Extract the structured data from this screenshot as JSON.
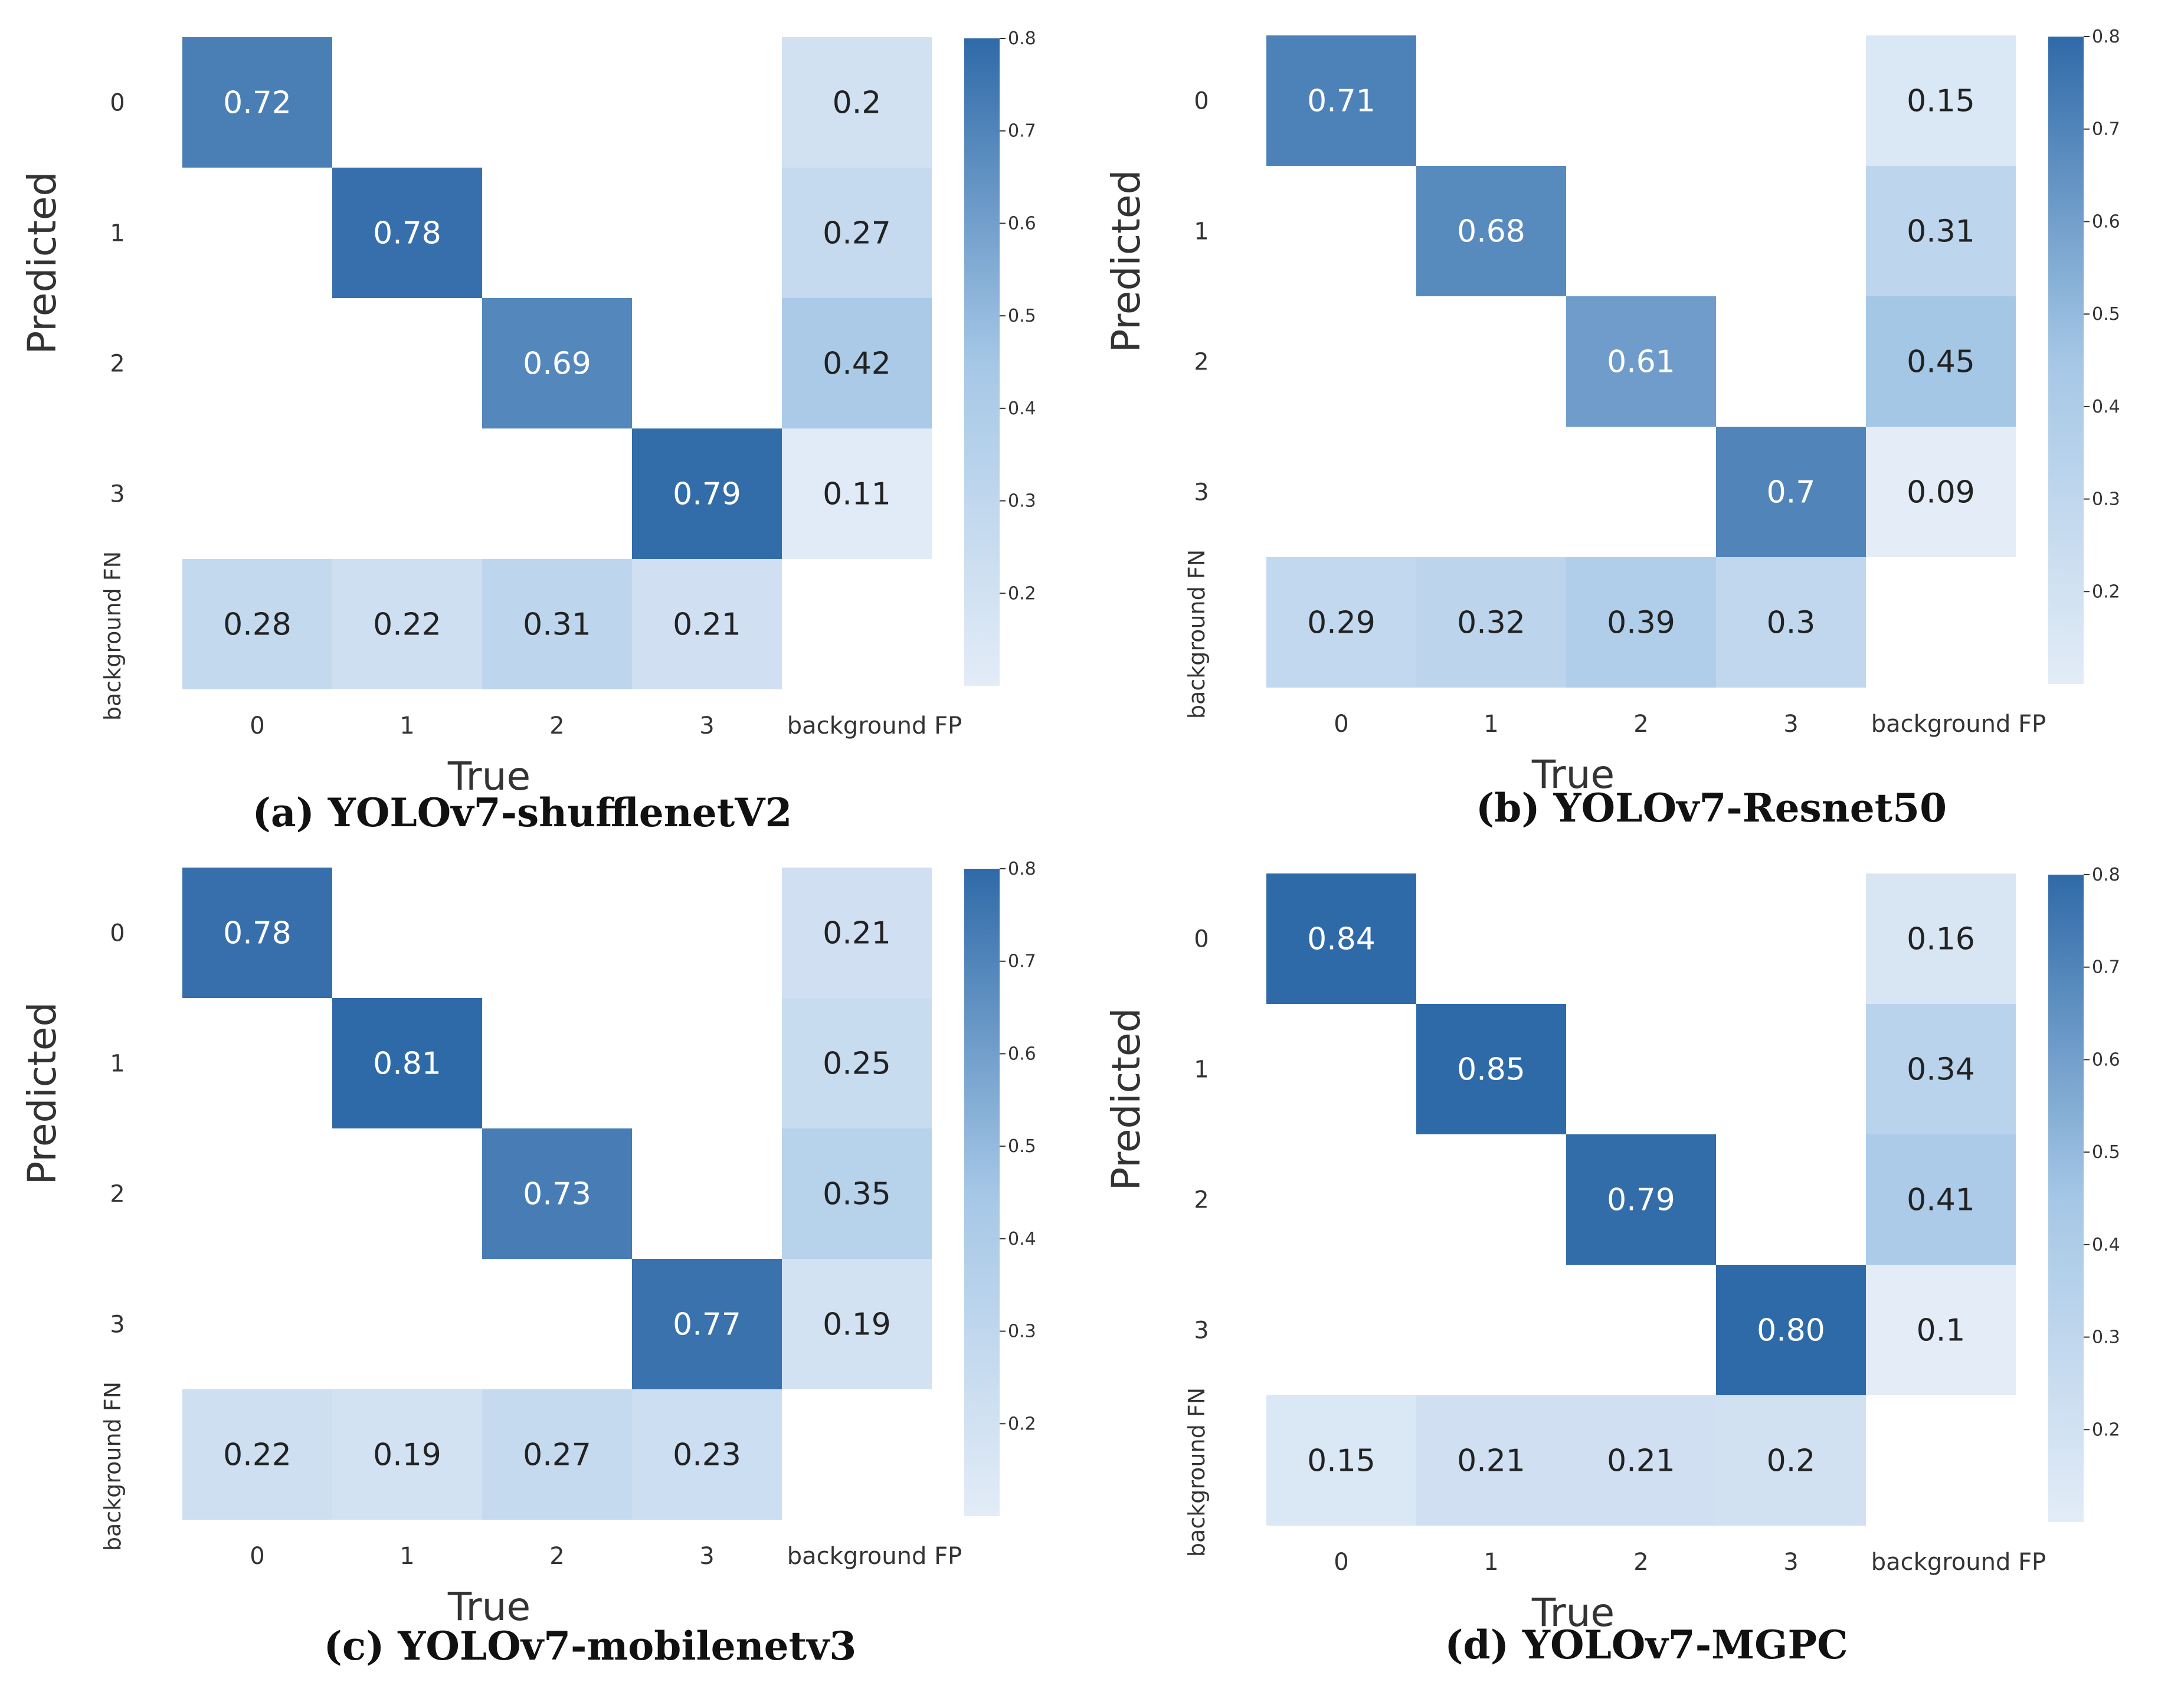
{
  "chart_data": [
    {
      "type": "heatmap",
      "caption": "(a) YOLOv7-shufflenetV2",
      "xlabel": "True",
      "ylabel": "Predicted",
      "x_categories": [
        "0",
        "1",
        "2",
        "3",
        "background FP"
      ],
      "y_categories": [
        "0",
        "1",
        "2",
        "3",
        "background FN"
      ],
      "colorbar": {
        "min": 0.1,
        "max": 0.8,
        "ticks": [
          "0.2",
          "0.3",
          "0.4",
          "0.5",
          "0.6",
          "0.7",
          "0.8"
        ]
      },
      "cells": [
        {
          "row": 0,
          "col": 0,
          "value": 0.72,
          "label": "0.72"
        },
        {
          "row": 0,
          "col": 4,
          "value": 0.2,
          "label": "0.2"
        },
        {
          "row": 1,
          "col": 1,
          "value": 0.78,
          "label": "0.78"
        },
        {
          "row": 1,
          "col": 4,
          "value": 0.27,
          "label": "0.27"
        },
        {
          "row": 2,
          "col": 2,
          "value": 0.69,
          "label": "0.69"
        },
        {
          "row": 2,
          "col": 4,
          "value": 0.42,
          "label": "0.42"
        },
        {
          "row": 3,
          "col": 3,
          "value": 0.79,
          "label": "0.79"
        },
        {
          "row": 3,
          "col": 4,
          "value": 0.11,
          "label": "0.11"
        },
        {
          "row": 4,
          "col": 0,
          "value": 0.28,
          "label": "0.28"
        },
        {
          "row": 4,
          "col": 1,
          "value": 0.22,
          "label": "0.22"
        },
        {
          "row": 4,
          "col": 2,
          "value": 0.31,
          "label": "0.31"
        },
        {
          "row": 4,
          "col": 3,
          "value": 0.21,
          "label": "0.21"
        }
      ]
    },
    {
      "type": "heatmap",
      "caption": "(b) YOLOv7-Resnet50",
      "xlabel": "True",
      "ylabel": "Predicted",
      "x_categories": [
        "0",
        "1",
        "2",
        "3",
        "background FP"
      ],
      "y_categories": [
        "0",
        "1",
        "2",
        "3",
        "background FN"
      ],
      "colorbar": {
        "min": 0.1,
        "max": 0.8,
        "ticks": [
          "0.2",
          "0.3",
          "0.4",
          "0.5",
          "0.6",
          "0.7",
          "0.8"
        ]
      },
      "cells": [
        {
          "row": 0,
          "col": 0,
          "value": 0.71,
          "label": "0.71"
        },
        {
          "row": 0,
          "col": 4,
          "value": 0.15,
          "label": "0.15"
        },
        {
          "row": 1,
          "col": 1,
          "value": 0.68,
          "label": "0.68"
        },
        {
          "row": 1,
          "col": 4,
          "value": 0.31,
          "label": "0.31"
        },
        {
          "row": 2,
          "col": 2,
          "value": 0.61,
          "label": "0.61"
        },
        {
          "row": 2,
          "col": 4,
          "value": 0.45,
          "label": "0.45"
        },
        {
          "row": 3,
          "col": 3,
          "value": 0.7,
          "label": "0.7"
        },
        {
          "row": 3,
          "col": 4,
          "value": 0.09,
          "label": "0.09"
        },
        {
          "row": 4,
          "col": 0,
          "value": 0.29,
          "label": "0.29"
        },
        {
          "row": 4,
          "col": 1,
          "value": 0.32,
          "label": "0.32"
        },
        {
          "row": 4,
          "col": 2,
          "value": 0.39,
          "label": "0.39"
        },
        {
          "row": 4,
          "col": 3,
          "value": 0.3,
          "label": "0.3"
        }
      ]
    },
    {
      "type": "heatmap",
      "caption": "(c) YOLOv7-mobilenetv3",
      "xlabel": "True",
      "ylabel": "Predicted",
      "x_categories": [
        "0",
        "1",
        "2",
        "3",
        "background FP"
      ],
      "y_categories": [
        "0",
        "1",
        "2",
        "3",
        "background FN"
      ],
      "colorbar": {
        "min": 0.1,
        "max": 0.8,
        "ticks": [
          "0.2",
          "0.3",
          "0.4",
          "0.5",
          "0.6",
          "0.7",
          "0.8"
        ]
      },
      "cells": [
        {
          "row": 0,
          "col": 0,
          "value": 0.78,
          "label": "0.78"
        },
        {
          "row": 0,
          "col": 4,
          "value": 0.21,
          "label": "0.21"
        },
        {
          "row": 1,
          "col": 1,
          "value": 0.81,
          "label": "0.81"
        },
        {
          "row": 1,
          "col": 4,
          "value": 0.25,
          "label": "0.25"
        },
        {
          "row": 2,
          "col": 2,
          "value": 0.73,
          "label": "0.73"
        },
        {
          "row": 2,
          "col": 4,
          "value": 0.35,
          "label": "0.35"
        },
        {
          "row": 3,
          "col": 3,
          "value": 0.77,
          "label": "0.77"
        },
        {
          "row": 3,
          "col": 4,
          "value": 0.19,
          "label": "0.19"
        },
        {
          "row": 4,
          "col": 0,
          "value": 0.22,
          "label": "0.22"
        },
        {
          "row": 4,
          "col": 1,
          "value": 0.19,
          "label": "0.19"
        },
        {
          "row": 4,
          "col": 2,
          "value": 0.27,
          "label": "0.27"
        },
        {
          "row": 4,
          "col": 3,
          "value": 0.23,
          "label": "0.23"
        }
      ]
    },
    {
      "type": "heatmap",
      "caption": "(d) YOLOv7-MGPC",
      "xlabel": "True",
      "ylabel": "Predicted",
      "x_categories": [
        "0",
        "1",
        "2",
        "3",
        "background FP"
      ],
      "y_categories": [
        "0",
        "1",
        "2",
        "3",
        "background FN"
      ],
      "colorbar": {
        "min": 0.1,
        "max": 0.8,
        "ticks": [
          "0.2",
          "0.3",
          "0.4",
          "0.5",
          "0.6",
          "0.7",
          "0.8"
        ]
      },
      "cells": [
        {
          "row": 0,
          "col": 0,
          "value": 0.84,
          "label": "0.84"
        },
        {
          "row": 0,
          "col": 4,
          "value": 0.16,
          "label": "0.16"
        },
        {
          "row": 1,
          "col": 1,
          "value": 0.85,
          "label": "0.85"
        },
        {
          "row": 1,
          "col": 4,
          "value": 0.34,
          "label": "0.34"
        },
        {
          "row": 2,
          "col": 2,
          "value": 0.79,
          "label": "0.79"
        },
        {
          "row": 2,
          "col": 4,
          "value": 0.41,
          "label": "0.41"
        },
        {
          "row": 3,
          "col": 3,
          "value": 0.8,
          "label": "0.80"
        },
        {
          "row": 3,
          "col": 4,
          "value": 0.1,
          "label": "0.1"
        },
        {
          "row": 4,
          "col": 0,
          "value": 0.15,
          "label": "0.15"
        },
        {
          "row": 4,
          "col": 1,
          "value": 0.21,
          "label": "0.21"
        },
        {
          "row": 4,
          "col": 2,
          "value": 0.21,
          "label": "0.21"
        },
        {
          "row": 4,
          "col": 3,
          "value": 0.2,
          "label": "0.2"
        }
      ]
    }
  ],
  "colors": {
    "scale_low": "#e3ecf7",
    "scale_mid": "#a5c7e6",
    "scale_high": "#2f6aa8",
    "dark_text": "#222222",
    "light_text": "#ffffff",
    "axis_text": "#333333"
  }
}
